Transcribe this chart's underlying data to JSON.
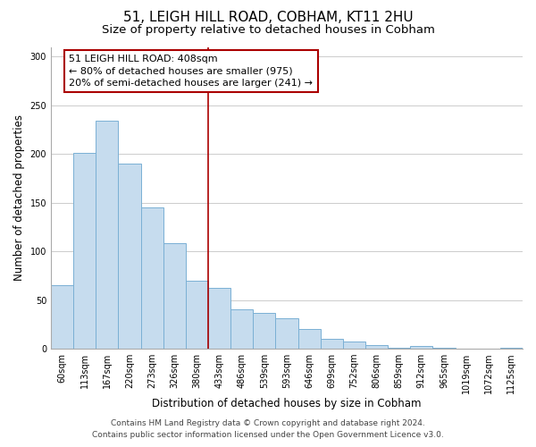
{
  "title": "51, LEIGH HILL ROAD, COBHAM, KT11 2HU",
  "subtitle": "Size of property relative to detached houses in Cobham",
  "xlabel": "Distribution of detached houses by size in Cobham",
  "ylabel": "Number of detached properties",
  "bar_labels": [
    "60sqm",
    "113sqm",
    "167sqm",
    "220sqm",
    "273sqm",
    "326sqm",
    "380sqm",
    "433sqm",
    "486sqm",
    "539sqm",
    "593sqm",
    "646sqm",
    "699sqm",
    "752sqm",
    "806sqm",
    "859sqm",
    "912sqm",
    "965sqm",
    "1019sqm",
    "1072sqm",
    "1125sqm"
  ],
  "bar_values": [
    65,
    201,
    234,
    190,
    145,
    108,
    70,
    62,
    40,
    37,
    31,
    20,
    10,
    7,
    4,
    1,
    3,
    1,
    0,
    0,
    1
  ],
  "bar_color": "#c6dcee",
  "bar_edge_color": "#7ab0d4",
  "vline_x": 6.5,
  "vline_color": "#aa0000",
  "annotation_title": "51 LEIGH HILL ROAD: 408sqm",
  "annotation_line1": "← 80% of detached houses are smaller (975)",
  "annotation_line2": "20% of semi-detached houses are larger (241) →",
  "annotation_box_color": "#ffffff",
  "annotation_box_edge": "#aa0000",
  "ylim": [
    0,
    310
  ],
  "yticks": [
    0,
    50,
    100,
    150,
    200,
    250,
    300
  ],
  "footnote1": "Contains HM Land Registry data © Crown copyright and database right 2024.",
  "footnote2": "Contains public sector information licensed under the Open Government Licence v3.0.",
  "background_color": "#ffffff",
  "grid_color": "#cccccc",
  "title_fontsize": 11,
  "subtitle_fontsize": 9.5,
  "axis_label_fontsize": 8.5,
  "tick_fontsize": 7,
  "footnote_fontsize": 6.5,
  "annotation_fontsize": 8
}
